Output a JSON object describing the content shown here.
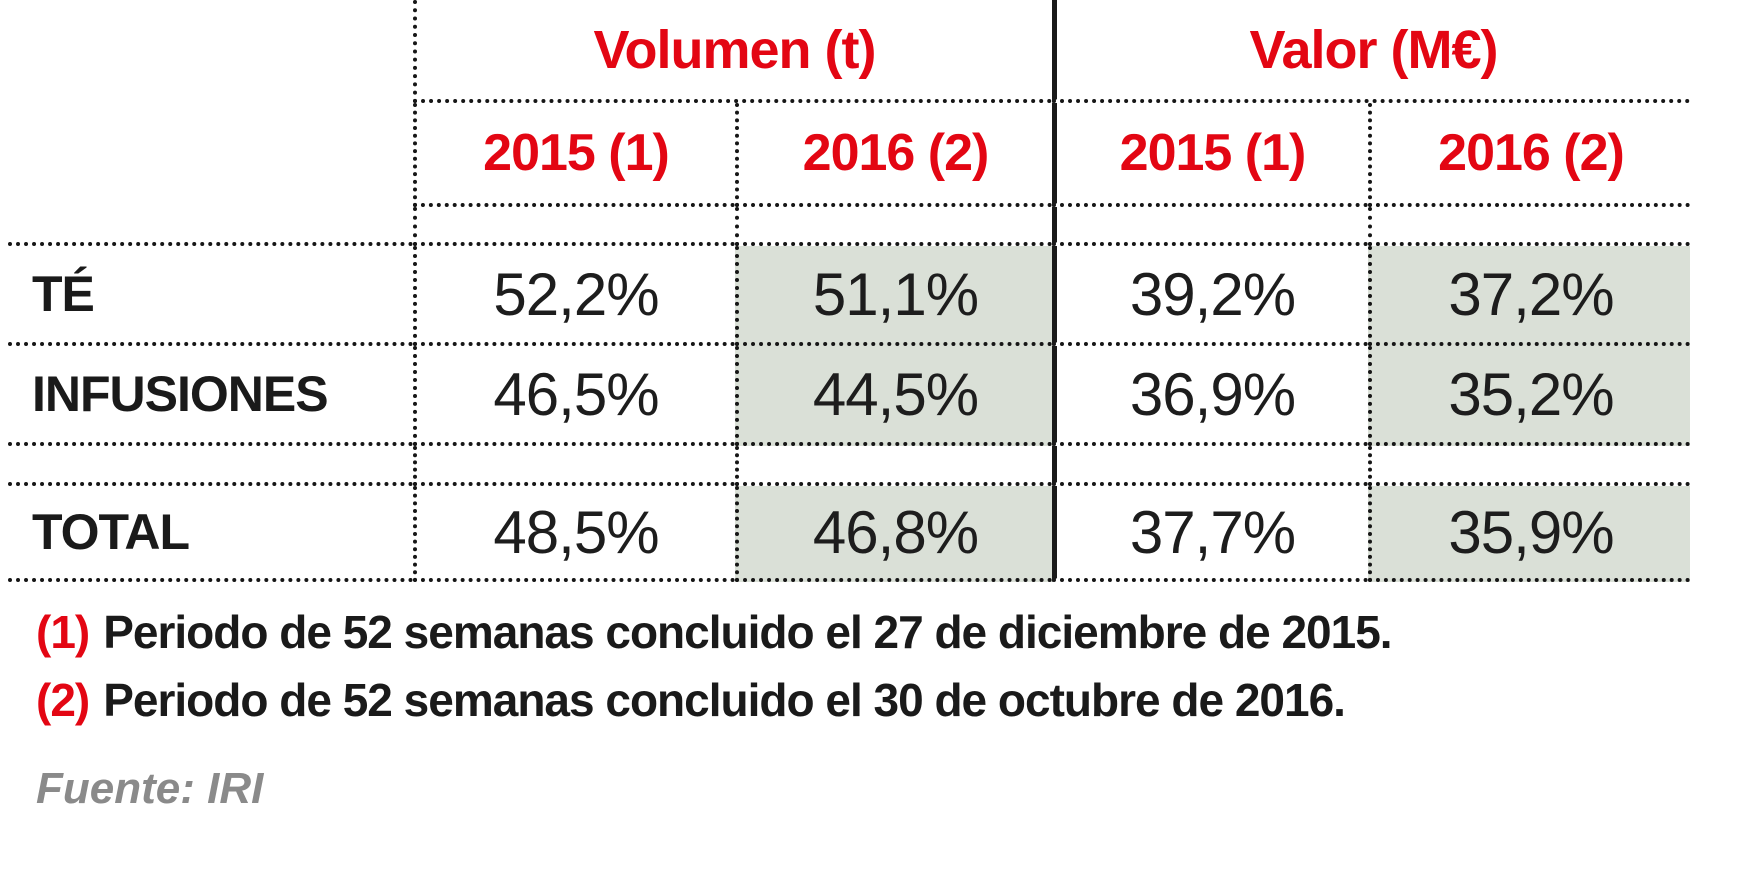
{
  "table": {
    "group_headers": [
      {
        "label": "Volumen (t)"
      },
      {
        "label": "Valor (M€)"
      }
    ],
    "year_headers": [
      "2015 (1)",
      "2016 (2)",
      "2015 (1)",
      "2016 (2)"
    ],
    "rows": [
      {
        "label": "TÉ",
        "values": [
          "52,2%",
          "51,1%",
          "39,2%",
          "37,2%"
        ]
      },
      {
        "label": "INFUSIONES",
        "values": [
          "46,5%",
          "44,5%",
          "36,9%",
          "35,2%"
        ]
      },
      {
        "label": "TOTAL",
        "values": [
          "48,5%",
          "46,8%",
          "37,7%",
          "35,9%"
        ]
      }
    ]
  },
  "footnotes": [
    {
      "marker": "(1)",
      "text": "Periodo de 52 semanas concluido el 27 de diciembre de 2015."
    },
    {
      "marker": "(2)",
      "text": "Periodo de 52 semanas concluido el 30 de octubre de 2016."
    }
  ],
  "source": "Fuente: IRI",
  "colors": {
    "accent_red": "#e30613",
    "highlight_green": "#dae0d7",
    "text_black": "#1a1a1a",
    "source_gray": "#8a8a8a"
  },
  "chart_data": {
    "type": "table",
    "title": "",
    "column_groups": [
      "Volumen (t)",
      "Valor (M€)"
    ],
    "columns": [
      "Volumen (t) 2015 (1)",
      "Volumen (t) 2016 (2)",
      "Valor (M€) 2015 (1)",
      "Valor (M€) 2016 (2)"
    ],
    "rows": [
      {
        "label": "TÉ",
        "values": [
          52.2,
          51.1,
          39.2,
          37.2
        ]
      },
      {
        "label": "INFUSIONES",
        "values": [
          46.5,
          44.5,
          36.9,
          35.2
        ]
      },
      {
        "label": "TOTAL",
        "values": [
          48.5,
          46.8,
          37.7,
          35.9
        ]
      }
    ],
    "unit": "%",
    "highlighted_columns": [
      "Volumen (t) 2016 (2)",
      "Valor (M€) 2016 (2)"
    ],
    "footnotes": [
      "(1) Periodo de 52 semanas concluido el 27 de diciembre de 2015.",
      "(2) Periodo de 52 semanas concluido el 30 de octubre de 2016."
    ],
    "source": "Fuente: IRI"
  }
}
